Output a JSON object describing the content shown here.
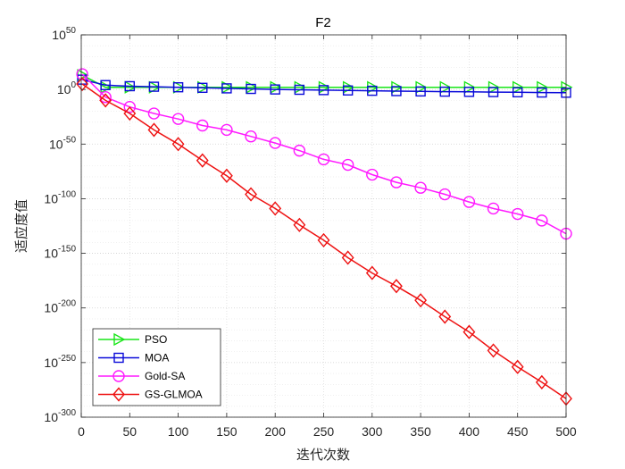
{
  "chart_data": {
    "type": "line",
    "title": "F2",
    "xlabel": "迭代次数",
    "ylabel": "适应度值",
    "xlim": [
      0,
      500
    ],
    "ylim_exponent": [
      -300,
      50
    ],
    "yscale": "log",
    "grid": true,
    "legend_position": "bottom-left",
    "x_ticks": [
      "0",
      "50",
      "100",
      "150",
      "200",
      "250",
      "300",
      "350",
      "400",
      "450",
      "500"
    ],
    "y_tick_base": "10",
    "y_tick_exponents": [
      "50",
      "0",
      "-50",
      "-100",
      "-150",
      "-200",
      "-250",
      "-300"
    ],
    "series": [
      {
        "name": "PSO",
        "color": "#19e619",
        "marker": "triangle-right",
        "x": [
          1,
          25,
          50,
          75,
          100,
          125,
          150,
          175,
          200,
          225,
          250,
          275,
          300,
          325,
          350,
          375,
          400,
          425,
          450,
          475,
          500
        ],
        "log10_y": [
          13,
          2,
          2,
          2,
          2,
          2,
          2,
          2,
          2,
          2,
          2,
          2,
          2,
          2,
          2,
          2,
          2,
          2,
          2,
          2,
          2
        ]
      },
      {
        "name": "MOA",
        "color": "#0a0ad9",
        "marker": "square",
        "x": [
          1,
          25,
          50,
          75,
          100,
          125,
          150,
          175,
          200,
          225,
          250,
          275,
          300,
          325,
          350,
          375,
          400,
          425,
          450,
          475,
          500
        ],
        "log10_y": [
          9,
          4,
          3,
          2.5,
          2,
          1.5,
          1,
          0.5,
          0,
          -0.3,
          -0.6,
          -0.9,
          -1.2,
          -1.5,
          -1.8,
          -2,
          -2.2,
          -2.4,
          -2.6,
          -2.8,
          -3
        ]
      },
      {
        "name": "Gold-SA",
        "color": "#ff19ff",
        "marker": "circle",
        "x": [
          1,
          25,
          50,
          75,
          100,
          125,
          150,
          175,
          200,
          225,
          250,
          275,
          300,
          325,
          350,
          375,
          400,
          425,
          450,
          475,
          500
        ],
        "log10_y": [
          14,
          -7,
          -16,
          -22,
          -27,
          -33,
          -37,
          -43,
          -49,
          -56,
          -64,
          -69,
          -78,
          -85,
          -90,
          -96,
          -103,
          -109,
          -114,
          -120,
          -132
        ]
      },
      {
        "name": "GS-GLMOA",
        "color": "#ee1111",
        "marker": "diamond",
        "x": [
          1,
          25,
          50,
          75,
          100,
          125,
          150,
          175,
          200,
          225,
          250,
          275,
          300,
          325,
          350,
          375,
          400,
          425,
          450,
          475,
          500
        ],
        "log10_y": [
          5,
          -10,
          -22,
          -37,
          -50,
          -65,
          -79,
          -96,
          -109,
          -124,
          -138,
          -154,
          -168,
          -180,
          -193,
          -208,
          -222,
          -239,
          -254,
          -268,
          -283
        ]
      }
    ]
  }
}
